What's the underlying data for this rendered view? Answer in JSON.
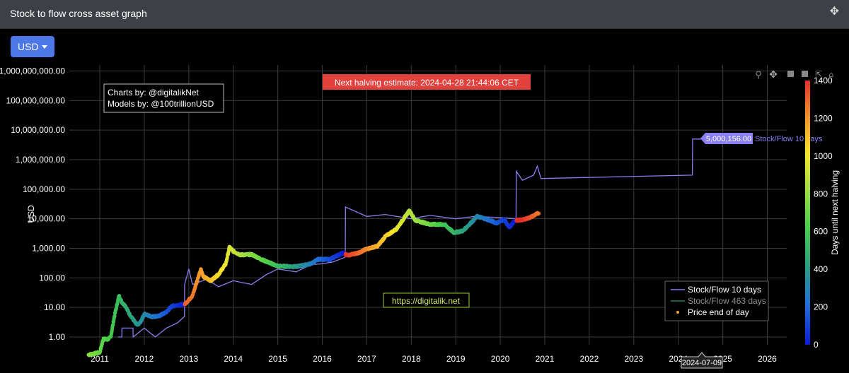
{
  "window": {
    "title": "Stock to flow cross asset graph"
  },
  "currency": {
    "label": "USD"
  },
  "annotations": {
    "halving": "Next halving estimate: 2024-04-28 21:44:06 CET",
    "credits_line1": "Charts by: @digitalikNet",
    "credits_line2": "Models by: @100trillionUSD",
    "website": "https://digitalik.net",
    "hover_value": "5,000,156.00",
    "hover_series": "Stock/Flow 10 days",
    "hover_date": "2024-07-09"
  },
  "icons": {
    "move": "move-arrows-icon",
    "zoom": "zoom-icon",
    "pan": "pan-icon",
    "zoom_in": "zoom-in-icon",
    "zoom_out": "zoom-out-icon",
    "autoscale": "autoscale-icon",
    "reset": "reset-axes-icon"
  },
  "chart_data": {
    "type": "line",
    "title": "",
    "ylabel": "USD",
    "ylog": true,
    "ylim": [
      0.1,
      1000000000
    ],
    "xlim": [
      "2010-10-01",
      "2026-07-01"
    ],
    "x_ticks": [
      "2011",
      "2012",
      "2013",
      "2014",
      "2015",
      "2016",
      "2017",
      "2018",
      "2019",
      "2020",
      "2021",
      "2022",
      "2023",
      "2024",
      "2025",
      "2026"
    ],
    "y_ticks": [
      {
        "value": 1,
        "label": "1.00"
      },
      {
        "value": 10,
        "label": "10.00"
      },
      {
        "value": 100,
        "label": "100.00"
      },
      {
        "value": 1000,
        "label": "1,000.00"
      },
      {
        "value": 10000,
        "label": "10,000.00"
      },
      {
        "value": 100000,
        "label": "100,000.00"
      },
      {
        "value": 1000000,
        "label": "1,000,000.00"
      },
      {
        "value": 10000000,
        "label": "10,000,000.00"
      },
      {
        "value": 100000000,
        "label": "100,000,000.00"
      },
      {
        "value": 1000000000,
        "label": "1,000,000,000.00"
      }
    ],
    "grid": true,
    "legend_position": "bottom-right",
    "series": [
      {
        "name": "Stock/Flow 10 days",
        "color": "#8a7ff0",
        "points": [
          [
            "2011-06-01",
            1
          ],
          [
            "2011-07-01",
            1
          ],
          [
            "2011-07-02",
            2
          ],
          [
            "2011-10-01",
            2
          ],
          [
            "2011-10-02",
            1
          ],
          [
            "2012-01-01",
            2
          ],
          [
            "2012-04-01",
            1
          ],
          [
            "2012-07-01",
            2
          ],
          [
            "2012-10-01",
            3
          ],
          [
            "2012-11-27",
            5
          ],
          [
            "2012-11-28",
            60
          ],
          [
            "2013-01-01",
            200
          ],
          [
            "2013-02-01",
            60
          ],
          [
            "2013-06-01",
            90
          ],
          [
            "2013-09-01",
            50
          ],
          [
            "2014-01-01",
            80
          ],
          [
            "2014-06-01",
            60
          ],
          [
            "2014-10-01",
            130
          ],
          [
            "2015-01-01",
            200
          ],
          [
            "2015-06-01",
            160
          ],
          [
            "2015-10-01",
            280
          ],
          [
            "2016-01-01",
            300
          ],
          [
            "2016-04-01",
            350
          ],
          [
            "2016-07-08",
            500
          ],
          [
            "2016-07-10",
            25000
          ],
          [
            "2017-01-01",
            12000
          ],
          [
            "2017-06-01",
            14000
          ],
          [
            "2018-01-01",
            10000
          ],
          [
            "2018-06-01",
            13000
          ],
          [
            "2019-01-01",
            10000
          ],
          [
            "2019-06-01",
            12000
          ],
          [
            "2020-01-01",
            11000
          ],
          [
            "2020-05-10",
            10000
          ],
          [
            "2020-05-12",
            400000
          ],
          [
            "2020-07-01",
            200000
          ],
          [
            "2020-10-01",
            300000
          ],
          [
            "2020-11-01",
            600000
          ],
          [
            "2020-12-01",
            230000
          ],
          [
            "2024-04-26",
            300000
          ],
          [
            "2024-04-28",
            5000000
          ],
          [
            "2024-07-09",
            5000156
          ]
        ]
      },
      {
        "name": "Stock/Flow 463 days",
        "color": "#2f7a68",
        "points": []
      },
      {
        "name": "Price end of day",
        "color": "#f0a830",
        "points": [
          [
            "2010-10-01",
            0.25
          ],
          [
            "2011-01-01",
            0.3
          ],
          [
            "2011-02-01",
            0.9
          ],
          [
            "2011-03-01",
            0.8
          ],
          [
            "2011-04-01",
            1.0
          ],
          [
            "2011-05-01",
            5
          ],
          [
            "2011-06-08",
            25
          ],
          [
            "2011-07-01",
            15
          ],
          [
            "2011-08-01",
            11
          ],
          [
            "2011-09-01",
            6
          ],
          [
            "2011-10-01",
            4
          ],
          [
            "2011-11-01",
            2.5
          ],
          [
            "2011-12-01",
            3.1
          ],
          [
            "2012-01-01",
            6
          ],
          [
            "2012-03-01",
            4.9
          ],
          [
            "2012-05-01",
            5.1
          ],
          [
            "2012-07-01",
            7
          ],
          [
            "2012-08-15",
            11
          ],
          [
            "2012-10-01",
            12
          ],
          [
            "2012-12-01",
            13
          ],
          [
            "2013-02-01",
            25
          ],
          [
            "2013-04-10",
            200
          ],
          [
            "2013-05-01",
            110
          ],
          [
            "2013-07-01",
            80
          ],
          [
            "2013-09-01",
            130
          ],
          [
            "2013-11-01",
            300
          ],
          [
            "2013-12-01",
            1100
          ],
          [
            "2014-01-01",
            800
          ],
          [
            "2014-03-01",
            600
          ],
          [
            "2014-06-01",
            620
          ],
          [
            "2014-09-01",
            400
          ],
          [
            "2015-01-01",
            250
          ],
          [
            "2015-06-01",
            240
          ],
          [
            "2015-10-01",
            300
          ],
          [
            "2015-12-01",
            430
          ],
          [
            "2016-03-01",
            420
          ],
          [
            "2016-06-15",
            700
          ],
          [
            "2016-08-01",
            580
          ],
          [
            "2016-11-01",
            720
          ],
          [
            "2017-01-01",
            950
          ],
          [
            "2017-04-01",
            1200
          ],
          [
            "2017-06-01",
            2500
          ],
          [
            "2017-09-01",
            4500
          ],
          [
            "2017-12-17",
            19000
          ],
          [
            "2018-02-01",
            9000
          ],
          [
            "2018-06-01",
            6500
          ],
          [
            "2018-10-01",
            6400
          ],
          [
            "2018-12-15",
            3400
          ],
          [
            "2019-03-01",
            3900
          ],
          [
            "2019-06-26",
            12000
          ],
          [
            "2019-09-01",
            10000
          ],
          [
            "2019-12-01",
            7200
          ],
          [
            "2020-02-01",
            9500
          ],
          [
            "2020-03-15",
            5000
          ],
          [
            "2020-05-01",
            8800
          ],
          [
            "2020-07-01",
            9200
          ],
          [
            "2020-09-01",
            11000
          ],
          [
            "2020-11-15",
            16000
          ]
        ]
      }
    ],
    "colorbar": {
      "title": "Days until next halving",
      "range": [
        0,
        1400
      ],
      "ticks": [
        "0",
        "200",
        "400",
        "600",
        "800",
        "1000",
        "1200",
        "1400"
      ]
    },
    "halvings": [
      "2012-11-28",
      "2016-07-09",
      "2020-05-11"
    ]
  }
}
